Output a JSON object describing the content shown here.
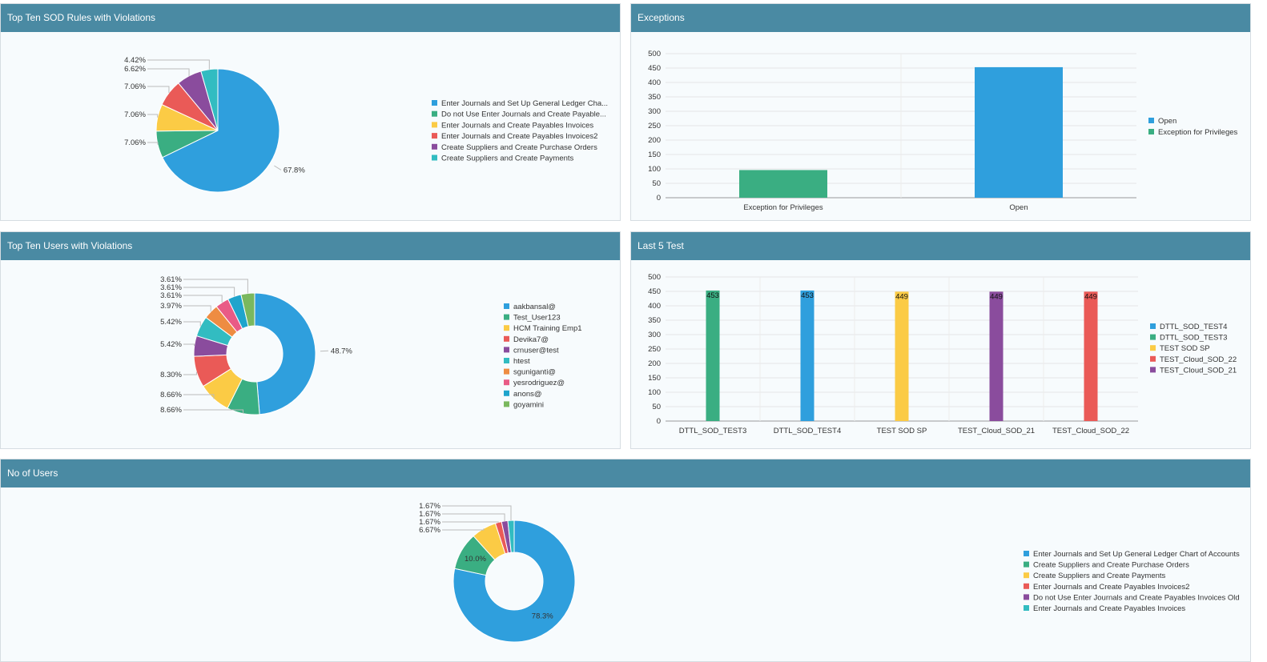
{
  "colors": {
    "header_bg": "#4a8aa3",
    "panel_bg": "#f7fbfd",
    "blue": "#2f9fdd",
    "green": "#3aae82",
    "yellow": "#fbcb45",
    "red": "#ea5a57",
    "purple": "#8a4c9d",
    "teal": "#32bcc1",
    "orange": "#ee8c42",
    "pink": "#e95b86",
    "lime": "#7ab85e"
  },
  "panels": {
    "sod_rules": {
      "title": "Top Ten SOD Rules with Violations"
    },
    "exceptions": {
      "title": "Exceptions"
    },
    "users": {
      "title": "Top Ten Users with Violations"
    },
    "last5": {
      "title": "Last 5 Test"
    },
    "no_users": {
      "title": "No of Users"
    }
  },
  "chart_data": [
    {
      "id": "sod_rules",
      "type": "pie",
      "title": "Top Ten SOD Rules with Violations",
      "slices": [
        {
          "label": "Enter Journals and Set Up General Ledger Cha...",
          "value": 67.8,
          "display": "67.8%",
          "color": "#2f9fdd"
        },
        {
          "label": "Do not Use Enter Journals and Create Payable...",
          "value": 7.06,
          "display": "7.06%",
          "color": "#3aae82"
        },
        {
          "label": "Enter Journals and Create Payables Invoices",
          "value": 7.06,
          "display": "7.06%",
          "color": "#fbcb45"
        },
        {
          "label": "Enter Journals and Create Payables Invoices2",
          "value": 7.06,
          "display": "7.06%",
          "color": "#ea5a57"
        },
        {
          "label": "Create Suppliers and Create Purchase Orders",
          "value": 6.62,
          "display": "6.62%",
          "color": "#8a4c9d"
        },
        {
          "label": "Create Suppliers and Create Payments",
          "value": 4.42,
          "display": "4.42%",
          "color": "#32bcc1"
        }
      ],
      "legend_position": "right"
    },
    {
      "id": "exceptions",
      "type": "bar",
      "title": "Exceptions",
      "categories": [
        "Exception for Privileges",
        "Open"
      ],
      "series": [
        {
          "name": "Open",
          "color": "#2f9fdd",
          "values": [
            null,
            453
          ]
        },
        {
          "name": "Exception for Privileges",
          "color": "#3aae82",
          "values": [
            96,
            null
          ]
        }
      ],
      "ylim": [
        0,
        500
      ],
      "yticks": [
        0,
        50,
        100,
        150,
        200,
        250,
        300,
        350,
        400,
        450,
        500
      ],
      "grid": true,
      "legend_position": "right"
    },
    {
      "id": "users",
      "type": "pie",
      "donut": true,
      "title": "Top Ten Users with Violations",
      "slices": [
        {
          "label": "aakbansal@",
          "value": 48.7,
          "display": "48.7%",
          "color": "#2f9fdd"
        },
        {
          "label": "Test_User123",
          "value": 8.66,
          "display": "8.66%",
          "color": "#3aae82"
        },
        {
          "label": "HCM Training Emp1",
          "value": 8.66,
          "display": "8.66%",
          "color": "#fbcb45"
        },
        {
          "label": "Devika7@",
          "value": 8.3,
          "display": "8.30%",
          "color": "#ea5a57"
        },
        {
          "label": "crnuser@test",
          "value": 5.42,
          "display": "5.42%",
          "color": "#8a4c9d"
        },
        {
          "label": "htest",
          "value": 5.42,
          "display": "5.42%",
          "color": "#32bcc1"
        },
        {
          "label": "sguniganti@",
          "value": 3.97,
          "display": "3.97%",
          "color": "#ee8c42"
        },
        {
          "label": "yesrodriguez@",
          "value": 3.61,
          "display": "3.61%",
          "color": "#e95b86"
        },
        {
          "label": "anons@",
          "value": 3.61,
          "display": "3.61%",
          "color": "#1fa4cc"
        },
        {
          "label": "goyamini",
          "value": 3.61,
          "display": "3.61%",
          "color": "#7ab85e"
        }
      ],
      "legend_position": "right"
    },
    {
      "id": "last5",
      "type": "bar",
      "title": "Last 5 Test",
      "categories": [
        "DTTL_SOD_TEST3",
        "DTTL_SOD_TEST4",
        "TEST SOD SP",
        "TEST_Cloud_SOD_21",
        "TEST_Cloud_SOD_22"
      ],
      "series": [
        {
          "name": "DTTL_SOD_TEST4",
          "color": "#2f9fdd",
          "values": [
            null,
            453,
            null,
            null,
            null
          ]
        },
        {
          "name": "DTTL_SOD_TEST3",
          "color": "#3aae82",
          "values": [
            453,
            null,
            null,
            null,
            null
          ]
        },
        {
          "name": "TEST SOD SP",
          "color": "#fbcb45",
          "values": [
            null,
            null,
            449,
            null,
            null
          ]
        },
        {
          "name": "TEST_Cloud_SOD_22",
          "color": "#ea5a57",
          "values": [
            null,
            null,
            null,
            null,
            449
          ]
        },
        {
          "name": "TEST_Cloud_SOD_21",
          "color": "#8a4c9d",
          "values": [
            null,
            null,
            null,
            449,
            null
          ]
        }
      ],
      "ylim": [
        0,
        500
      ],
      "yticks": [
        0,
        50,
        100,
        150,
        200,
        250,
        300,
        350,
        400,
        450,
        500
      ],
      "grid": true,
      "legend_position": "right"
    },
    {
      "id": "no_users",
      "type": "pie",
      "donut": true,
      "title": "No of Users",
      "slices": [
        {
          "label": "Enter Journals and Set Up General Ledger Chart of Accounts",
          "value": 78.3,
          "display": "78.3%",
          "color": "#2f9fdd"
        },
        {
          "label": "Create Suppliers and Create Purchase Orders",
          "value": 10.0,
          "display": "10.0%",
          "color": "#3aae82"
        },
        {
          "label": "Create Suppliers and Create Payments",
          "value": 6.67,
          "display": "6.67%",
          "color": "#fbcb45"
        },
        {
          "label": "Enter Journals and Create Payables Invoices2",
          "value": 1.67,
          "display": "1.67%",
          "color": "#ea5a57"
        },
        {
          "label": "Do not Use Enter Journals and Create Payables Invoices Old",
          "value": 1.67,
          "display": "1.67%",
          "color": "#8a4c9d"
        },
        {
          "label": "Enter Journals and Create Payables Invoices",
          "value": 1.67,
          "display": "1.67%",
          "color": "#32bcc1"
        }
      ],
      "legend_position": "right"
    }
  ]
}
